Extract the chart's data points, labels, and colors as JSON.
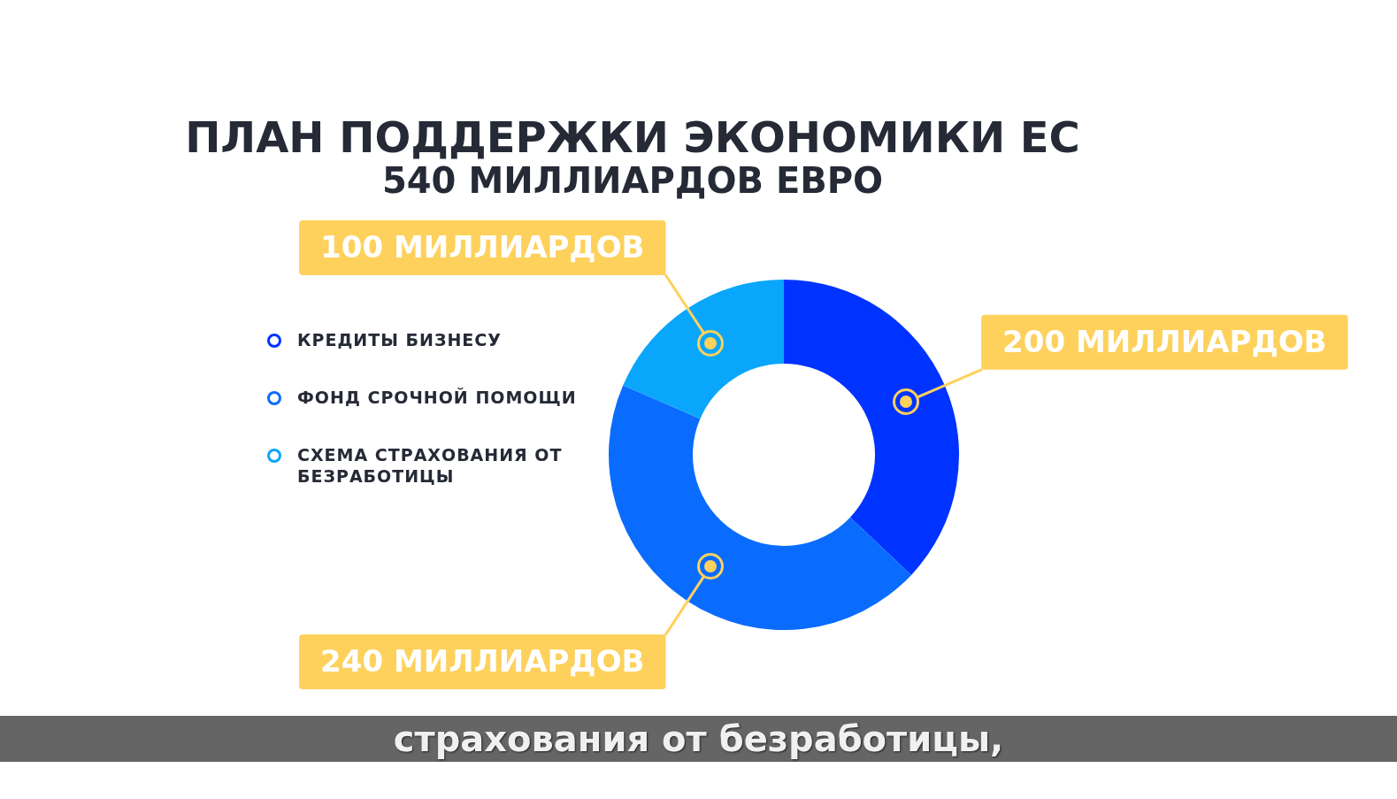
{
  "chart_data": {
    "type": "donut",
    "title": "ПЛАН ПОДДЕРЖКИ ЭКОНОМИКИ ЕС",
    "subtitle": "540 МИЛЛИАРДОВ ЕВРО",
    "categories": [
      "КРЕДИТЫ БИЗНЕСУ",
      "ФОНД СРОЧНОЙ ПОМОЩИ",
      "СХЕМА СТРАХОВАНИЯ ОТ БЕЗРАБОТИЦЫ"
    ],
    "values": [
      200,
      240,
      100
    ],
    "colors": [
      "#0033ff",
      "#0a6cff",
      "#09a6fb"
    ],
    "value_labels": [
      "200 МИЛЛИАРДОВ",
      "240 МИЛЛИАРДОВ",
      "100 МИЛЛИАРДОВ"
    ],
    "legend": "left",
    "annotations": [
      "страхования от безработицы,"
    ]
  }
}
